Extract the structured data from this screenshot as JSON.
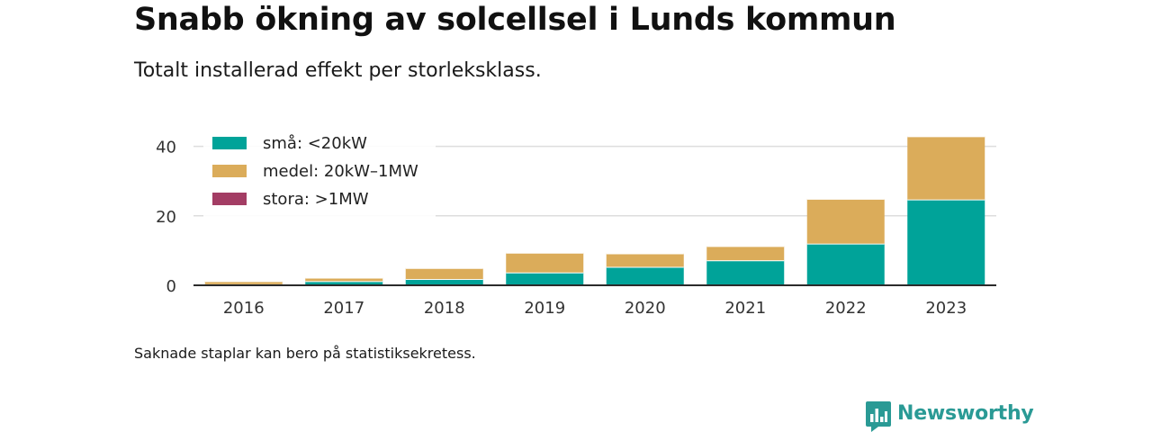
{
  "header": {
    "title": "Snabb ökning av solcellsel i Lunds kommun",
    "subtitle": "Totalt installerad effekt per storleksklass."
  },
  "footnote": "Saknade staplar kan bero på statistiksekretess.",
  "brand": {
    "name": "Newsworthy",
    "icon": "newsworthy-logo-icon",
    "color": "#2a9a95"
  },
  "chart_data": {
    "type": "bar",
    "stacked": true,
    "categories": [
      "2016",
      "2017",
      "2018",
      "2019",
      "2020",
      "2021",
      "2022",
      "2023"
    ],
    "series": [
      {
        "name": "små: <20kW",
        "color": "#00a399",
        "values": [
          0.3,
          1.2,
          1.8,
          3.7,
          5.3,
          7.2,
          12.0,
          24.7
        ]
      },
      {
        "name": "medel: 20kW–1MW",
        "color": "#dbac5a",
        "values": [
          0.9,
          1.0,
          3.2,
          5.7,
          3.9,
          4.1,
          12.9,
          18.2
        ]
      },
      {
        "name": "stora: >1MW",
        "color": "#a33d64",
        "values": [
          0,
          0,
          0,
          0,
          0,
          0,
          0,
          0
        ]
      }
    ],
    "ylim": [
      0,
      45
    ],
    "yticks": [
      0,
      20,
      40
    ],
    "xlabel": "",
    "ylabel": "",
    "grid": true,
    "legend": "top-left"
  }
}
